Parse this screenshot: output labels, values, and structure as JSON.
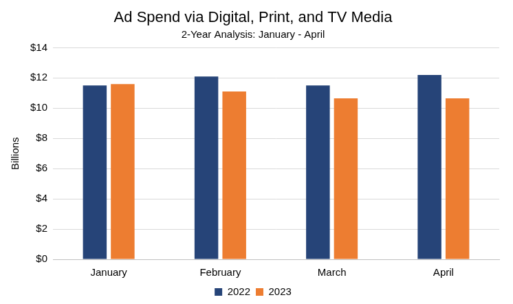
{
  "chart_data": {
    "type": "bar",
    "title": "Ad Spend via Digital, Print, and TV Media",
    "subtitle": "2-Year Analysis: January - April",
    "y_label": "Billions",
    "categories": [
      "January",
      "February",
      "March",
      "April"
    ],
    "series": [
      {
        "name": "2022",
        "color": "#264478",
        "values": [
          11.5,
          12.1,
          11.5,
          12.2
        ]
      },
      {
        "name": "2023",
        "color": "#ed7d31",
        "values": [
          11.6,
          11.1,
          10.65,
          10.65
        ]
      }
    ],
    "ylim": [
      0,
      14
    ],
    "yticks": [
      {
        "value": 0,
        "label": "$0"
      },
      {
        "value": 2,
        "label": "$2"
      },
      {
        "value": 4,
        "label": "$4"
      },
      {
        "value": 6,
        "label": "$6"
      },
      {
        "value": 8,
        "label": "$8"
      },
      {
        "value": 10,
        "label": "$10"
      },
      {
        "value": 12,
        "label": "$12"
      },
      {
        "value": 14,
        "label": "$14"
      }
    ],
    "grid": true,
    "legend": "bottom"
  }
}
